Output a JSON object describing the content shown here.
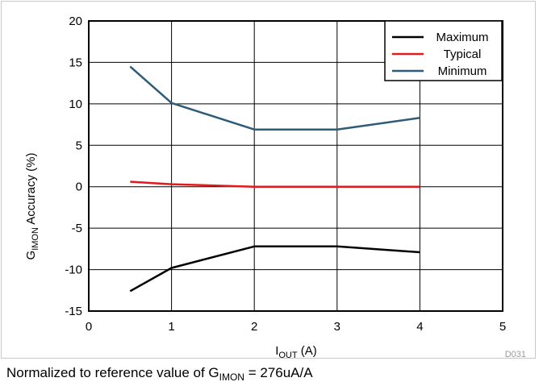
{
  "chart_data": {
    "type": "line",
    "title": "",
    "xlabel": {
      "main": "I",
      "sub": "OUT",
      "rest": " (A)"
    },
    "ylabel": {
      "main": "G",
      "sub": "IMON",
      "rest": " Accuracy (%)"
    },
    "xlim": [
      0,
      5
    ],
    "ylim": [
      -15,
      20
    ],
    "xticks": [
      0,
      1,
      2,
      3,
      4,
      5
    ],
    "yticks": [
      -15,
      -10,
      -5,
      0,
      5,
      10,
      15,
      20
    ],
    "grid": true,
    "legend_position": "top-right",
    "series": [
      {
        "name": "Maximum",
        "color": "#000000",
        "points": [
          [
            0.5,
            -12.6
          ],
          [
            1,
            -9.8
          ],
          [
            2,
            -7.2
          ],
          [
            3,
            -7.2
          ],
          [
            4,
            -7.9
          ]
        ]
      },
      {
        "name": "Typical",
        "color": "#e31a1c",
        "points": [
          [
            0.5,
            0.6
          ],
          [
            1,
            0.3
          ],
          [
            2,
            0.0
          ],
          [
            3,
            0.0
          ],
          [
            4,
            0.0
          ]
        ]
      },
      {
        "name": "Minimum",
        "color": "#2e5b78",
        "points": [
          [
            0.5,
            14.5
          ],
          [
            1,
            10.1
          ],
          [
            2,
            6.9
          ],
          [
            3,
            6.9
          ],
          [
            4,
            8.3
          ]
        ]
      }
    ]
  },
  "figure_id": "D031",
  "note": {
    "main": "Normalized to reference value of G",
    "sub": "IMON",
    "rest": " = 276uA/A"
  }
}
